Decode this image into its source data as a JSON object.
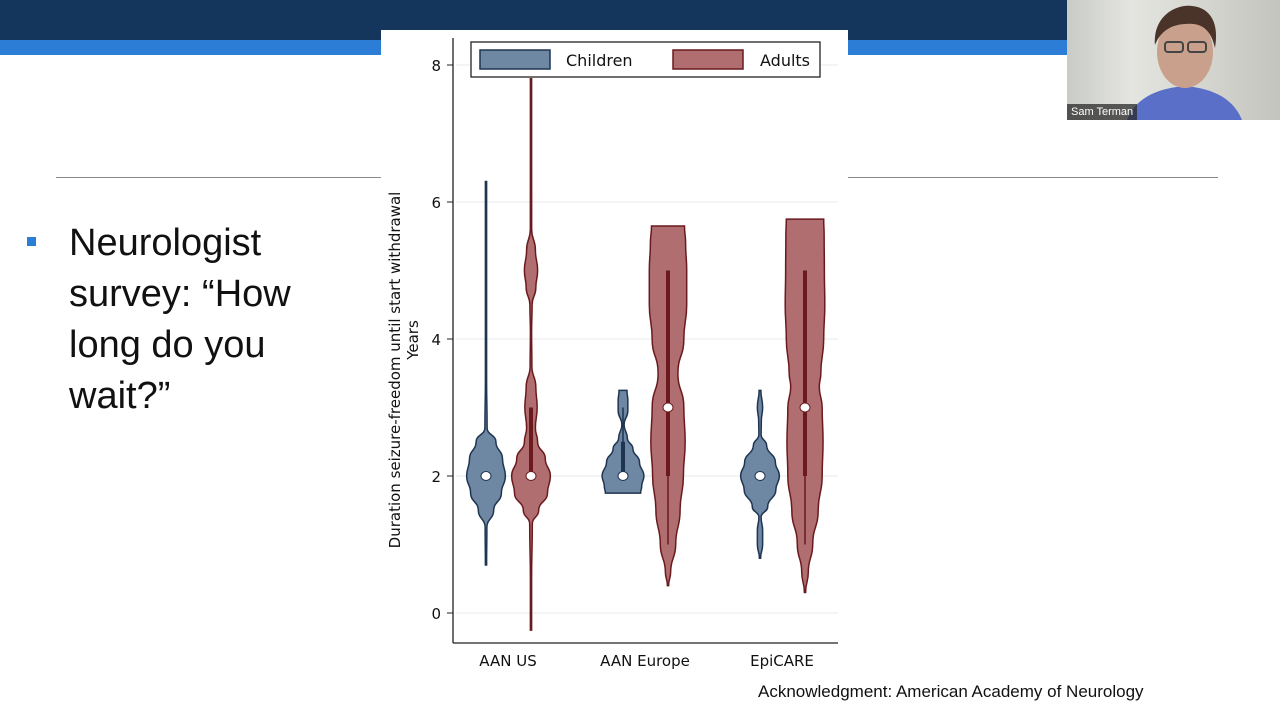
{
  "slide": {
    "bullet_text": "Neurologist survey: “How long do you wait?”",
    "acknowledgment": "Acknowledgment: American Academy of Neurology",
    "colors": {
      "top_bar": "#15365c",
      "accent_stripe": "#2b7dd6"
    }
  },
  "video": {
    "participant_name": "Sam Terman"
  },
  "chart_data": {
    "type": "violin",
    "ylabel_line1": "Duration seizure-freedom until start withdrawal",
    "ylabel_line2": "Years",
    "ylim": [
      -0.4,
      8.3
    ],
    "yticks": [
      0,
      2,
      4,
      6,
      8
    ],
    "categories": [
      "AAN US",
      "AAN Europe",
      "EpiCARE"
    ],
    "grid": true,
    "legend_placement": "top",
    "series": [
      {
        "name": "Children",
        "color": "#6e87a3",
        "edge": "#1f3450",
        "groups": [
          {
            "median": 2,
            "iqr": [
              2,
              2
            ],
            "whisker": [
              2,
              2
            ],
            "density": [
              [
                0.7,
                0
              ],
              [
                1.25,
                0.04
              ],
              [
                1.5,
                0.35
              ],
              [
                1.75,
                0.7
              ],
              [
                2,
                0.88
              ],
              [
                2.25,
                0.75
              ],
              [
                2.5,
                0.45
              ],
              [
                2.7,
                0.05
              ],
              [
                3.4,
                0.02
              ],
              [
                4.6,
                0.02
              ],
              [
                5.3,
                0.02
              ],
              [
                6.3,
                0.01
              ]
            ]
          },
          {
            "median": 2,
            "iqr": [
              2,
              2.5
            ],
            "whisker": [
              2,
              3
            ],
            "density": [
              [
                1.75,
                0.8
              ],
              [
                1.85,
                0.85
              ],
              [
                2,
                0.95
              ],
              [
                2.2,
                0.75
              ],
              [
                2.4,
                0.45
              ],
              [
                2.55,
                0.2
              ],
              [
                2.75,
                0.05
              ],
              [
                2.95,
                0.22
              ],
              [
                3.1,
                0.22
              ],
              [
                3.25,
                0.18
              ]
            ]
          },
          {
            "median": 2,
            "iqr": [
              2,
              2
            ],
            "whisker": [
              2,
              2
            ],
            "density": [
              [
                0.8,
                0.02
              ],
              [
                1.0,
                0.12
              ],
              [
                1.2,
                0.12
              ],
              [
                1.4,
                0.05
              ],
              [
                1.55,
                0.35
              ],
              [
                1.8,
                0.72
              ],
              [
                2,
                0.88
              ],
              [
                2.2,
                0.7
              ],
              [
                2.45,
                0.3
              ],
              [
                2.6,
                0.05
              ],
              [
                2.8,
                0.06
              ],
              [
                3.0,
                0.12
              ],
              [
                3.25,
                0.04
              ]
            ]
          }
        ]
      },
      {
        "name": "Adults",
        "color": "#b06e70",
        "edge": "#6a1a1e",
        "groups": [
          {
            "median": 2,
            "iqr": [
              2,
              3
            ],
            "whisker": [
              2,
              3
            ],
            "density": [
              [
                -0.25,
                0.01
              ],
              [
                0.5,
                0.02
              ],
              [
                1.3,
                0.06
              ],
              [
                1.5,
                0.35
              ],
              [
                1.75,
                0.75
              ],
              [
                2,
                0.88
              ],
              [
                2.25,
                0.65
              ],
              [
                2.5,
                0.3
              ],
              [
                2.7,
                0.2
              ],
              [
                3,
                0.28
              ],
              [
                3.3,
                0.22
              ],
              [
                3.6,
                0.04
              ],
              [
                4.1,
                0.02
              ],
              [
                4.5,
                0.05
              ],
              [
                4.75,
                0.22
              ],
              [
                5,
                0.3
              ],
              [
                5.3,
                0.2
              ],
              [
                5.6,
                0.03
              ],
              [
                6.6,
                0.01
              ],
              [
                7.8,
                0.005
              ]
            ]
          },
          {
            "median": 3,
            "iqr": [
              2,
              5
            ],
            "whisker": [
              1,
              5
            ],
            "density": [
              [
                0.4,
                0.02
              ],
              [
                0.6,
                0.12
              ],
              [
                1,
                0.35
              ],
              [
                1.5,
                0.55
              ],
              [
                2,
                0.7
              ],
              [
                2.5,
                0.78
              ],
              [
                3,
                0.72
              ],
              [
                3.5,
                0.45
              ],
              [
                4,
                0.72
              ],
              [
                4.5,
                0.85
              ],
              [
                5,
                0.85
              ],
              [
                5.4,
                0.8
              ],
              [
                5.65,
                0.75
              ]
            ]
          },
          {
            "median": 3,
            "iqr": [
              2,
              5
            ],
            "whisker": [
              1,
              5
            ],
            "density": [
              [
                0.3,
                0.02
              ],
              [
                0.6,
                0.15
              ],
              [
                1,
                0.35
              ],
              [
                1.5,
                0.6
              ],
              [
                2,
                0.78
              ],
              [
                2.5,
                0.82
              ],
              [
                3,
                0.78
              ],
              [
                3.3,
                0.65
              ],
              [
                3.5,
                0.72
              ],
              [
                4,
                0.85
              ],
              [
                4.5,
                0.9
              ],
              [
                5,
                0.88
              ],
              [
                5.5,
                0.87
              ],
              [
                5.75,
                0.85
              ]
            ]
          }
        ]
      }
    ]
  }
}
